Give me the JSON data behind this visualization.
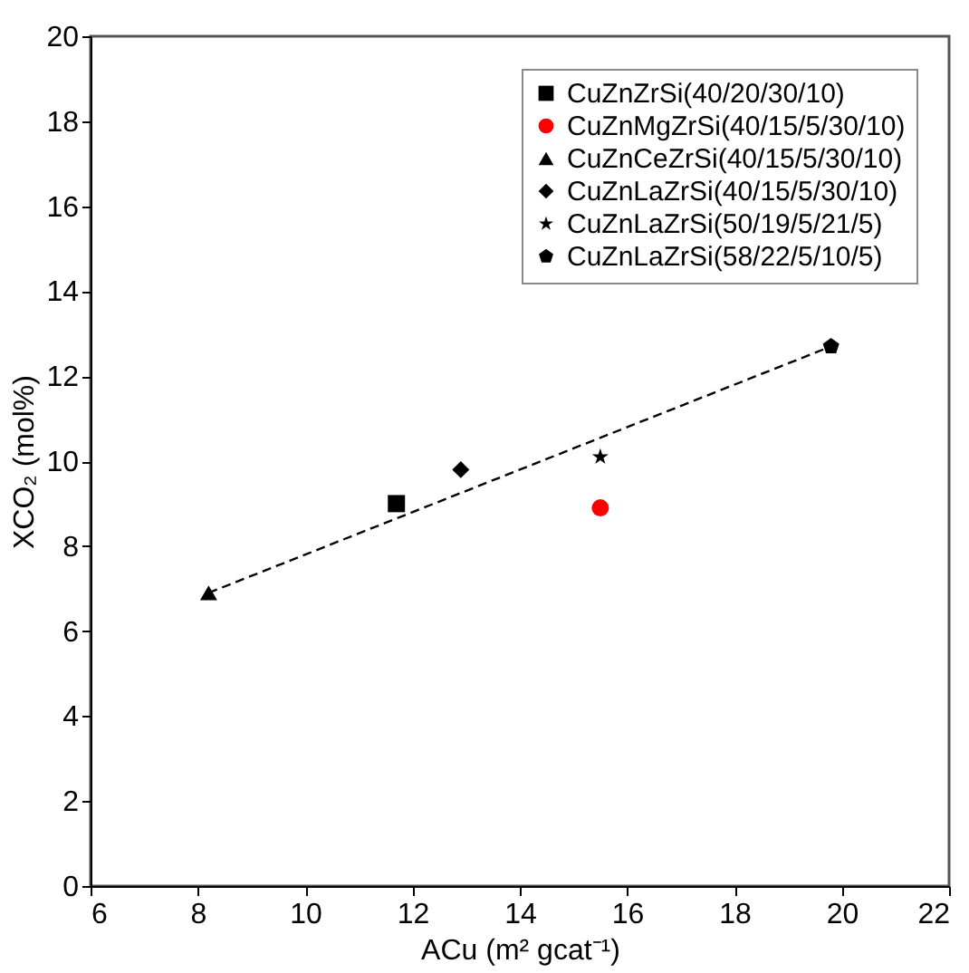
{
  "chart_data": {
    "type": "scatter",
    "xlabel": "ACu (m² gcat⁻¹)",
    "ylabel": "XCO₂ (mol%)",
    "xlim": [
      6,
      22
    ],
    "xticks": [
      6,
      8,
      10,
      12,
      14,
      16,
      18,
      20,
      22
    ],
    "ylim": [
      0,
      20
    ],
    "yticks": [
      0,
      2,
      4,
      6,
      8,
      10,
      12,
      14,
      16,
      18,
      20
    ],
    "grid": false,
    "legend": "top right",
    "series": [
      {
        "name": "CuZnZrSi(40/20/30/10)",
        "color": "#000000",
        "marker": "square",
        "x": [
          11.7
        ],
        "values": [
          9.0
        ]
      },
      {
        "name": "CuZnMgZrSi(40/15/5/30/10)",
        "color": "#ff0000",
        "marker": "circle",
        "x": [
          15.5
        ],
        "values": [
          8.9
        ]
      },
      {
        "name": "CuZnCeZrSi(40/15/5/30/10)",
        "color": "#000000",
        "marker": "triangle",
        "x": [
          8.2
        ],
        "values": [
          6.9
        ]
      },
      {
        "name": "CuZnLaZrSi(40/15/5/30/10)",
        "color": "#000000",
        "marker": "diamond",
        "x": [
          12.9
        ],
        "values": [
          9.8
        ]
      },
      {
        "name": "CuZnLaZrSi(50/19/5/21/5)",
        "color": "#000000",
        "marker": "star",
        "x": [
          15.5
        ],
        "values": [
          10.1
        ]
      },
      {
        "name": "CuZnLaZrSi(58/22/5/10/5)",
        "color": "#000000",
        "x": [
          19.8
        ],
        "values": [
          12.7
        ]
      },
      {
        "type": "line",
        "color": "#000000",
        "marker": "none",
        "line_style": "dashed",
        "x": [
          8.2,
          19.8
        ],
        "values": [
          6.9,
          12.7
        ]
      }
    ]
  }
}
